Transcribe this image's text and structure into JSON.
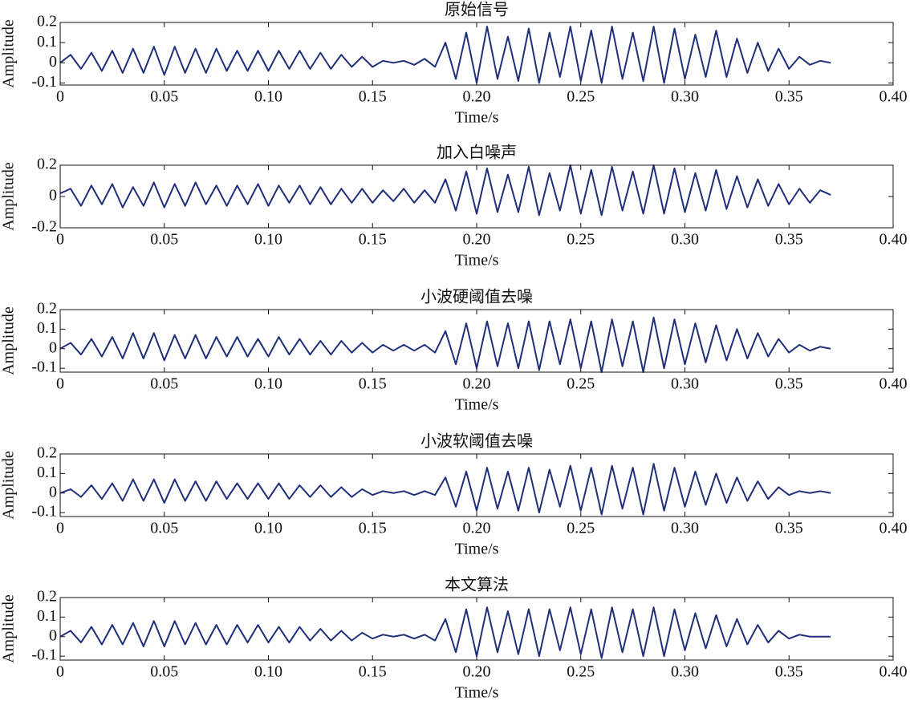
{
  "chart_data": [
    {
      "type": "line",
      "title": "原始信号",
      "xlabel": "Time/s",
      "ylabel": "Amplitude",
      "x": [
        0,
        0.005,
        0.01,
        0.015,
        0.02,
        0.025,
        0.03,
        0.035,
        0.04,
        0.045,
        0.05,
        0.055,
        0.06,
        0.065,
        0.07,
        0.075,
        0.08,
        0.085,
        0.09,
        0.095,
        0.1,
        0.105,
        0.11,
        0.115,
        0.12,
        0.125,
        0.13,
        0.135,
        0.14,
        0.145,
        0.15,
        0.155,
        0.16,
        0.165,
        0.17,
        0.175,
        0.18,
        0.185,
        0.19,
        0.195,
        0.2,
        0.205,
        0.21,
        0.215,
        0.22,
        0.225,
        0.23,
        0.235,
        0.24,
        0.245,
        0.25,
        0.255,
        0.26,
        0.265,
        0.27,
        0.275,
        0.28,
        0.285,
        0.29,
        0.295,
        0.3,
        0.305,
        0.31,
        0.315,
        0.32,
        0.325,
        0.33,
        0.335,
        0.34,
        0.345,
        0.35,
        0.355,
        0.36,
        0.365,
        0.37
      ],
      "series": [
        {
          "color": "#1f2f7a",
          "values": [
            0,
            0.04,
            -0.03,
            0.05,
            -0.04,
            0.06,
            -0.05,
            0.07,
            -0.05,
            0.08,
            -0.06,
            0.08,
            -0.05,
            0.07,
            -0.05,
            0.07,
            -0.04,
            0.06,
            -0.04,
            0.06,
            -0.04,
            0.06,
            -0.03,
            0.06,
            -0.03,
            0.05,
            -0.03,
            0.04,
            -0.02,
            0.03,
            -0.02,
            0.01,
            0,
            0.01,
            -0.01,
            0.02,
            -0.02,
            0.1,
            -0.08,
            0.15,
            -0.1,
            0.18,
            -0.08,
            0.13,
            -0.09,
            0.17,
            -0.1,
            0.15,
            -0.07,
            0.18,
            -0.09,
            0.16,
            -0.1,
            0.18,
            -0.08,
            0.15,
            -0.09,
            0.18,
            -0.1,
            0.17,
            -0.08,
            0.14,
            -0.07,
            0.16,
            -0.07,
            0.12,
            -0.05,
            0.1,
            -0.04,
            0.07,
            -0.03,
            0.03,
            -0.01,
            0.01,
            0
          ]
        }
      ],
      "xlim": [
        0,
        0.4
      ],
      "xticks": [
        0,
        0.05,
        {
          "value": 0.1,
          "label": "0.10"
        },
        0.15,
        {
          "value": 0.2,
          "label": "0.20"
        },
        0.25,
        {
          "value": 0.3,
          "label": "0.30"
        },
        0.35,
        {
          "value": 0.4,
          "label": "0.40"
        }
      ],
      "ylim": [
        -0.11,
        0.2
      ],
      "yticks": [
        -0.1,
        0,
        0.1,
        0.2
      ]
    },
    {
      "type": "line",
      "title": "加入白噪声",
      "xlabel": "Time/s",
      "ylabel": "Amplitude",
      "x": [
        0,
        0.005,
        0.01,
        0.015,
        0.02,
        0.025,
        0.03,
        0.035,
        0.04,
        0.045,
        0.05,
        0.055,
        0.06,
        0.065,
        0.07,
        0.075,
        0.08,
        0.085,
        0.09,
        0.095,
        0.1,
        0.105,
        0.11,
        0.115,
        0.12,
        0.125,
        0.13,
        0.135,
        0.14,
        0.145,
        0.15,
        0.155,
        0.16,
        0.165,
        0.17,
        0.175,
        0.18,
        0.185,
        0.19,
        0.195,
        0.2,
        0.205,
        0.21,
        0.215,
        0.22,
        0.225,
        0.23,
        0.235,
        0.24,
        0.245,
        0.25,
        0.255,
        0.26,
        0.265,
        0.27,
        0.275,
        0.28,
        0.285,
        0.29,
        0.295,
        0.3,
        0.305,
        0.31,
        0.315,
        0.32,
        0.325,
        0.33,
        0.335,
        0.34,
        0.345,
        0.35,
        0.355,
        0.36,
        0.365,
        0.37
      ],
      "series": [
        {
          "color": "#1f2f7a",
          "values": [
            0.02,
            0.05,
            -0.06,
            0.07,
            -0.05,
            0.08,
            -0.07,
            0.06,
            -0.06,
            0.09,
            -0.07,
            0.08,
            -0.06,
            0.09,
            -0.05,
            0.07,
            -0.06,
            0.07,
            -0.05,
            0.08,
            -0.06,
            0.07,
            -0.04,
            0.07,
            -0.05,
            0.06,
            -0.05,
            0.05,
            -0.04,
            0.05,
            -0.04,
            0.04,
            -0.03,
            0.05,
            -0.04,
            0.04,
            -0.04,
            0.11,
            -0.09,
            0.16,
            -0.11,
            0.18,
            -0.1,
            0.14,
            -0.1,
            0.19,
            -0.12,
            0.15,
            -0.09,
            0.2,
            -0.11,
            0.17,
            -0.12,
            0.19,
            -0.09,
            0.16,
            -0.11,
            0.2,
            -0.11,
            0.18,
            -0.1,
            0.15,
            -0.09,
            0.17,
            -0.08,
            0.13,
            -0.07,
            0.11,
            -0.06,
            0.08,
            -0.05,
            0.05,
            -0.04,
            0.04,
            0.01
          ]
        }
      ],
      "xlim": [
        0,
        0.4
      ],
      "xticks": [
        0,
        0.05,
        {
          "value": 0.1,
          "label": "0.10"
        },
        0.15,
        {
          "value": 0.2,
          "label": "0.20"
        },
        0.25,
        {
          "value": 0.3,
          "label": "0.30"
        },
        0.35,
        {
          "value": 0.4,
          "label": "0.40"
        }
      ],
      "ylim": [
        -0.2,
        0.2
      ],
      "yticks": [
        -0.2,
        0,
        0.2
      ]
    },
    {
      "type": "line",
      "title": "小波硬阈值去噪",
      "xlabel": "Time/s",
      "ylabel": "Amplitude",
      "x": [
        0,
        0.005,
        0.01,
        0.015,
        0.02,
        0.025,
        0.03,
        0.035,
        0.04,
        0.045,
        0.05,
        0.055,
        0.06,
        0.065,
        0.07,
        0.075,
        0.08,
        0.085,
        0.09,
        0.095,
        0.1,
        0.105,
        0.11,
        0.115,
        0.12,
        0.125,
        0.13,
        0.135,
        0.14,
        0.145,
        0.15,
        0.155,
        0.16,
        0.165,
        0.17,
        0.175,
        0.18,
        0.185,
        0.19,
        0.195,
        0.2,
        0.205,
        0.21,
        0.215,
        0.22,
        0.225,
        0.23,
        0.235,
        0.24,
        0.245,
        0.25,
        0.255,
        0.26,
        0.265,
        0.27,
        0.275,
        0.28,
        0.285,
        0.29,
        0.295,
        0.3,
        0.305,
        0.31,
        0.315,
        0.32,
        0.325,
        0.33,
        0.335,
        0.34,
        0.345,
        0.35,
        0.355,
        0.36,
        0.365,
        0.37
      ],
      "series": [
        {
          "color": "#1f2f7a",
          "values": [
            0,
            0.03,
            -0.03,
            0.05,
            -0.04,
            0.06,
            -0.05,
            0.08,
            -0.05,
            0.08,
            -0.06,
            0.07,
            -0.05,
            0.07,
            -0.05,
            0.06,
            -0.04,
            0.06,
            -0.04,
            0.05,
            -0.04,
            0.06,
            -0.03,
            0.05,
            -0.03,
            0.04,
            -0.03,
            0.04,
            -0.02,
            0.03,
            -0.02,
            0.02,
            -0.01,
            0.02,
            -0.01,
            0.02,
            -0.02,
            0.09,
            -0.08,
            0.13,
            -0.1,
            0.14,
            -0.09,
            0.13,
            -0.1,
            0.14,
            -0.11,
            0.14,
            -0.08,
            0.15,
            -0.1,
            0.14,
            -0.12,
            0.15,
            -0.09,
            0.14,
            -0.12,
            0.16,
            -0.1,
            0.15,
            -0.08,
            0.13,
            -0.07,
            0.12,
            -0.06,
            0.1,
            -0.05,
            0.08,
            -0.04,
            0.05,
            -0.02,
            0.02,
            -0.01,
            0.01,
            0
          ]
        }
      ],
      "xlim": [
        0,
        0.4
      ],
      "xticks": [
        0,
        0.05,
        {
          "value": 0.1,
          "label": "0.10"
        },
        0.15,
        {
          "value": 0.2,
          "label": "0.20"
        },
        0.25,
        {
          "value": 0.3,
          "label": "0.30"
        },
        0.35,
        {
          "value": 0.4,
          "label": "0.40"
        }
      ],
      "ylim": [
        -0.12,
        0.2
      ],
      "yticks": [
        -0.1,
        0,
        0.1,
        0.2
      ]
    },
    {
      "type": "line",
      "title": "小波软阈值去噪",
      "xlabel": "Time/s",
      "ylabel": "Amplitude",
      "x": [
        0,
        0.005,
        0.01,
        0.015,
        0.02,
        0.025,
        0.03,
        0.035,
        0.04,
        0.045,
        0.05,
        0.055,
        0.06,
        0.065,
        0.07,
        0.075,
        0.08,
        0.085,
        0.09,
        0.095,
        0.1,
        0.105,
        0.11,
        0.115,
        0.12,
        0.125,
        0.13,
        0.135,
        0.14,
        0.145,
        0.15,
        0.155,
        0.16,
        0.165,
        0.17,
        0.175,
        0.18,
        0.185,
        0.19,
        0.195,
        0.2,
        0.205,
        0.21,
        0.215,
        0.22,
        0.225,
        0.23,
        0.235,
        0.24,
        0.245,
        0.25,
        0.255,
        0.26,
        0.265,
        0.27,
        0.275,
        0.28,
        0.285,
        0.29,
        0.295,
        0.3,
        0.305,
        0.31,
        0.315,
        0.32,
        0.325,
        0.33,
        0.335,
        0.34,
        0.345,
        0.35,
        0.355,
        0.36,
        0.365,
        0.37
      ],
      "series": [
        {
          "color": "#1f2f7a",
          "values": [
            0,
            0.02,
            -0.02,
            0.04,
            -0.03,
            0.05,
            -0.04,
            0.07,
            -0.04,
            0.07,
            -0.05,
            0.07,
            -0.04,
            0.06,
            -0.04,
            0.06,
            -0.03,
            0.05,
            -0.03,
            0.05,
            -0.03,
            0.05,
            -0.03,
            0.04,
            -0.02,
            0.04,
            -0.02,
            0.03,
            -0.02,
            0.02,
            -0.01,
            0.01,
            0,
            0.01,
            -0.01,
            0.01,
            -0.01,
            0.08,
            -0.07,
            0.11,
            -0.09,
            0.13,
            -0.08,
            0.11,
            -0.09,
            0.13,
            -0.1,
            0.12,
            -0.07,
            0.14,
            -0.09,
            0.13,
            -0.11,
            0.14,
            -0.08,
            0.13,
            -0.11,
            0.15,
            -0.09,
            0.13,
            -0.07,
            0.11,
            -0.06,
            0.1,
            -0.05,
            0.08,
            -0.04,
            0.06,
            -0.03,
            0.03,
            -0.01,
            0.01,
            0,
            0.01,
            0
          ]
        }
      ],
      "xlim": [
        0,
        0.4
      ],
      "xticks": [
        0,
        0.05,
        {
          "value": 0.1,
          "label": "0.10"
        },
        0.15,
        {
          "value": 0.2,
          "label": "0.20"
        },
        0.25,
        {
          "value": 0.3,
          "label": "0.30"
        },
        0.35,
        {
          "value": 0.4,
          "label": "0.40"
        }
      ],
      "ylim": [
        -0.12,
        0.2
      ],
      "yticks": [
        -0.1,
        0,
        0.1,
        0.2
      ]
    },
    {
      "type": "line",
      "title": "本文算法",
      "xlabel": "Time/s",
      "ylabel": "Amplitude",
      "x": [
        0,
        0.005,
        0.01,
        0.015,
        0.02,
        0.025,
        0.03,
        0.035,
        0.04,
        0.045,
        0.05,
        0.055,
        0.06,
        0.065,
        0.07,
        0.075,
        0.08,
        0.085,
        0.09,
        0.095,
        0.1,
        0.105,
        0.11,
        0.115,
        0.12,
        0.125,
        0.13,
        0.135,
        0.14,
        0.145,
        0.15,
        0.155,
        0.16,
        0.165,
        0.17,
        0.175,
        0.18,
        0.185,
        0.19,
        0.195,
        0.2,
        0.205,
        0.21,
        0.215,
        0.22,
        0.225,
        0.23,
        0.235,
        0.24,
        0.245,
        0.25,
        0.255,
        0.26,
        0.265,
        0.27,
        0.275,
        0.28,
        0.285,
        0.29,
        0.295,
        0.3,
        0.305,
        0.31,
        0.315,
        0.32,
        0.325,
        0.33,
        0.335,
        0.34,
        0.345,
        0.35,
        0.355,
        0.36,
        0.365,
        0.37
      ],
      "series": [
        {
          "color": "#1f2f7a",
          "values": [
            0,
            0.03,
            -0.03,
            0.05,
            -0.04,
            0.06,
            -0.04,
            0.07,
            -0.05,
            0.08,
            -0.05,
            0.08,
            -0.04,
            0.07,
            -0.04,
            0.06,
            -0.04,
            0.06,
            -0.03,
            0.06,
            -0.03,
            0.05,
            -0.03,
            0.05,
            -0.02,
            0.04,
            -0.02,
            0.03,
            -0.02,
            0.02,
            -0.01,
            0.01,
            0,
            0.01,
            -0.01,
            0.01,
            -0.02,
            0.09,
            -0.08,
            0.14,
            -0.1,
            0.15,
            -0.08,
            0.13,
            -0.09,
            0.14,
            -0.1,
            0.14,
            -0.07,
            0.15,
            -0.09,
            0.14,
            -0.11,
            0.15,
            -0.08,
            0.14,
            -0.1,
            0.15,
            -0.1,
            0.14,
            -0.07,
            0.12,
            -0.06,
            0.11,
            -0.05,
            0.09,
            -0.04,
            0.06,
            -0.03,
            0.03,
            -0.01,
            0.01,
            0,
            0,
            0
          ]
        }
      ],
      "xlim": [
        0,
        0.4
      ],
      "xticks": [
        0,
        0.05,
        {
          "value": 0.1,
          "label": "0.10"
        },
        0.15,
        {
          "value": 0.2,
          "label": "0.20"
        },
        0.25,
        {
          "value": 0.3,
          "label": "0.30"
        },
        0.35,
        {
          "value": 0.4,
          "label": "0.40"
        }
      ],
      "ylim": [
        -0.12,
        0.2
      ],
      "yticks": [
        -0.1,
        0,
        0.1,
        0.2
      ]
    }
  ]
}
